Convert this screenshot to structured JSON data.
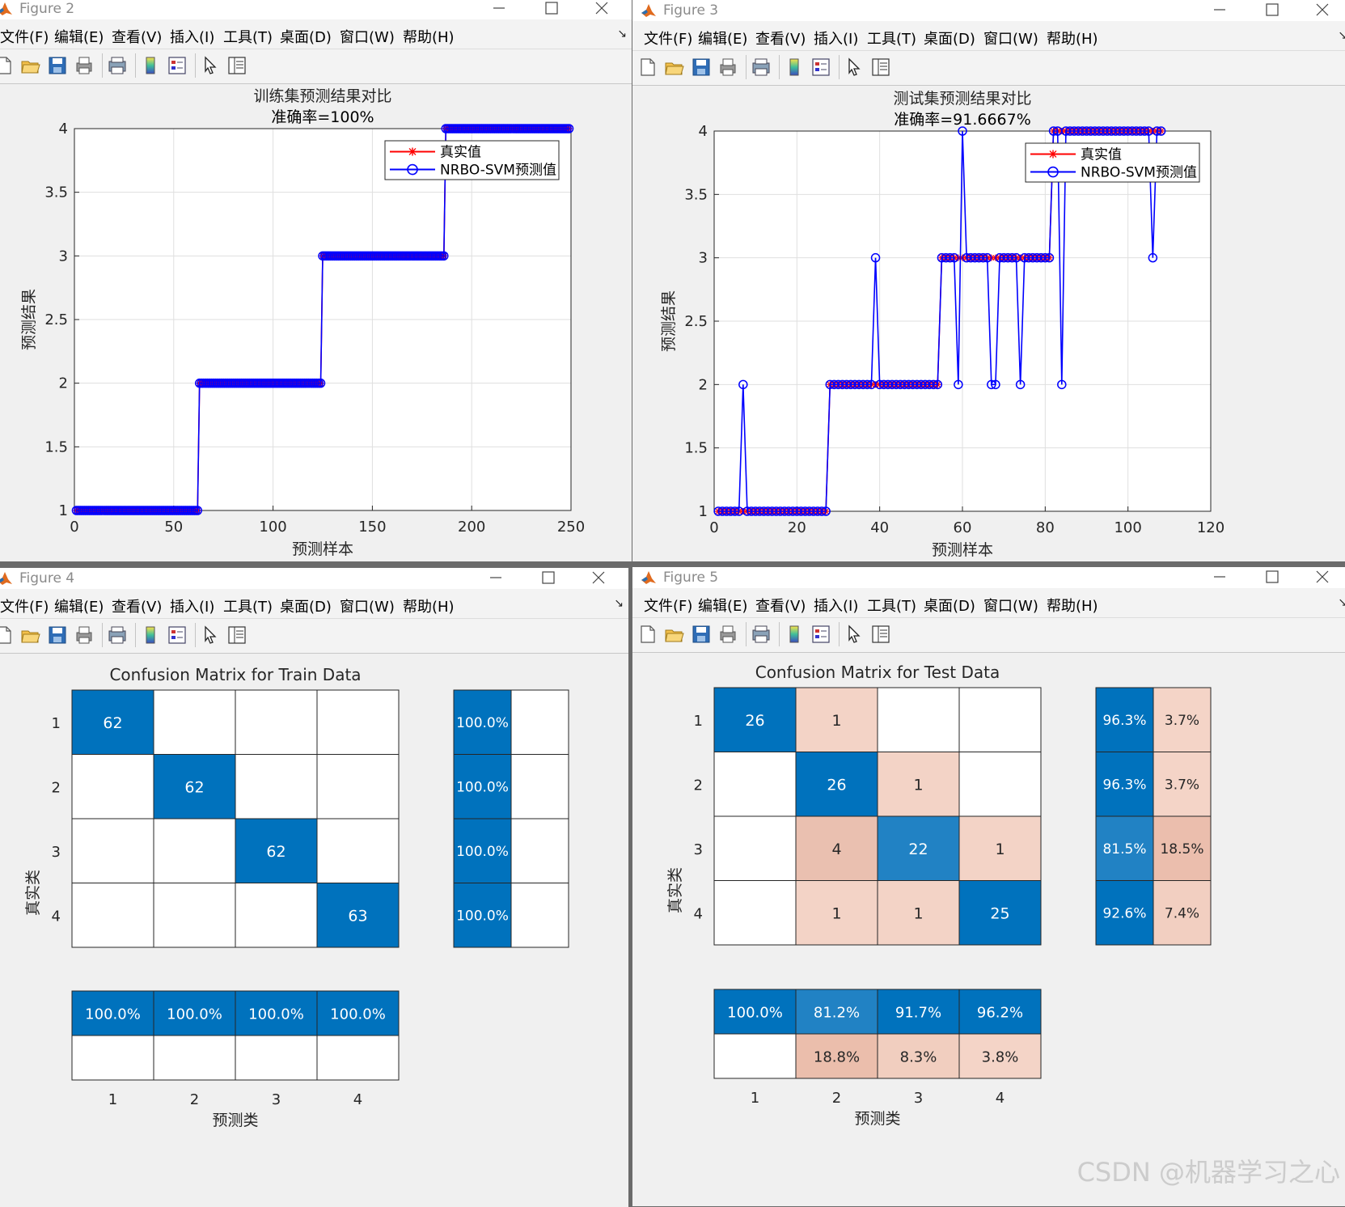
{
  "menu_labels": [
    "文件(F)",
    "编辑(E)",
    "查看(V)",
    "插入(I)",
    "工具(T)",
    "桌面(D)",
    "窗口(W)",
    "帮助(H)"
  ],
  "menu_overflow": "↘",
  "legend": {
    "actual": "真实值",
    "predicted": "NRBO-SVM预测值"
  },
  "colors": {
    "actual": "#ff0000",
    "predicted": "#0000ff",
    "cm_blue": "#0072bd",
    "cm_pink": "#f5d7cb"
  },
  "windows": [
    {
      "title": "Figure 2"
    },
    {
      "title": "Figure 3"
    },
    {
      "title": "Figure 4"
    },
    {
      "title": "Figure 5"
    }
  ],
  "chart_data": [
    {
      "type": "line",
      "title": "训练集预测结果对比",
      "subtitle": "准确率=100%",
      "xlabel": "预测样本",
      "ylabel": "预测结果",
      "xlim": [
        0,
        250
      ],
      "ylim": [
        1,
        4
      ],
      "xticks": [
        0,
        50,
        100,
        150,
        200,
        250
      ],
      "yticks": [
        1,
        1.5,
        2,
        2.5,
        3,
        3.5,
        4
      ],
      "grid": true,
      "legend_position": "top-right",
      "class_runs": [
        [
          1,
          62
        ],
        [
          2,
          62
        ],
        [
          3,
          62
        ],
        [
          4,
          63
        ]
      ],
      "errors": []
    },
    {
      "type": "line",
      "title": "测试集预测结果对比",
      "subtitle": "准确率=91.6667%",
      "xlabel": "预测样本",
      "ylabel": "预测结果",
      "xlim": [
        0,
        120
      ],
      "ylim": [
        1,
        4
      ],
      "xticks": [
        0,
        20,
        40,
        60,
        80,
        100,
        120
      ],
      "yticks": [
        1,
        1.5,
        2,
        2.5,
        3,
        3.5,
        4
      ],
      "grid": true,
      "legend_position": "top-right",
      "class_runs": [
        [
          1,
          27
        ],
        [
          2,
          27
        ],
        [
          3,
          27
        ],
        [
          4,
          27
        ]
      ],
      "errors": [
        [
          7,
          2
        ],
        [
          39,
          3
        ],
        [
          60,
          4
        ],
        [
          59,
          2
        ],
        [
          67,
          2
        ],
        [
          68,
          2
        ],
        [
          74,
          2
        ],
        [
          84,
          2
        ],
        [
          106,
          3
        ]
      ]
    },
    {
      "type": "heatmap",
      "title": "Confusion Matrix for Train Data",
      "xlabel": "预测类",
      "ylabel": "真实类",
      "classes": [
        "1",
        "2",
        "3",
        "4"
      ],
      "matrix": [
        [
          62,
          0,
          0,
          0
        ],
        [
          0,
          62,
          0,
          0
        ],
        [
          0,
          0,
          62,
          0
        ],
        [
          0,
          0,
          0,
          63
        ]
      ],
      "row_summary": [
        [
          "100.0%",
          ""
        ],
        [
          "100.0%",
          ""
        ],
        [
          "100.0%",
          ""
        ],
        [
          "100.0%",
          ""
        ]
      ],
      "col_summary": [
        [
          "100.0%",
          "100.0%",
          "100.0%",
          "100.0%"
        ],
        [
          "",
          "",
          "",
          ""
        ]
      ]
    },
    {
      "type": "heatmap",
      "title": "Confusion Matrix for Test Data",
      "xlabel": "预测类",
      "ylabel": "真实类",
      "classes": [
        "1",
        "2",
        "3",
        "4"
      ],
      "matrix": [
        [
          26,
          1,
          0,
          0
        ],
        [
          0,
          26,
          1,
          0
        ],
        [
          0,
          4,
          22,
          1
        ],
        [
          0,
          1,
          1,
          25
        ]
      ],
      "row_summary": [
        [
          "96.3%",
          "3.7%"
        ],
        [
          "96.3%",
          "3.7%"
        ],
        [
          "81.5%",
          "18.5%"
        ],
        [
          "92.6%",
          "7.4%"
        ]
      ],
      "col_summary": [
        [
          "100.0%",
          "81.2%",
          "91.7%",
          "96.2%"
        ],
        [
          "",
          "18.8%",
          "8.3%",
          "3.8%"
        ]
      ]
    }
  ],
  "watermark": "CSDN @机器学习之心"
}
